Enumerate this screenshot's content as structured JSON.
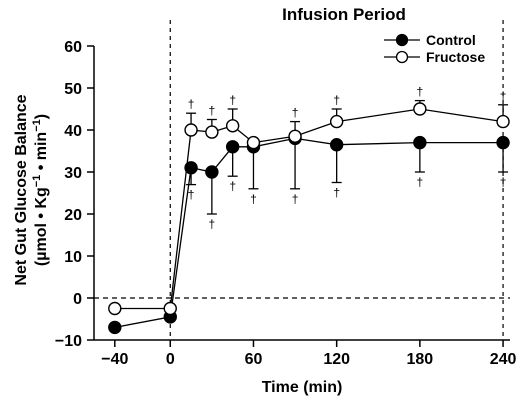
{
  "chart_data": {
    "type": "line",
    "title": "Infusion Period",
    "xlabel": "Time (min)",
    "ylabel_line1": "Net Gut Glucose Balance",
    "ylabel_line2_prefix": "(µmol • Kg",
    "ylabel_line2_sup1": "−1",
    "ylabel_line2_mid": " • min",
    "ylabel_line2_sup2": "−1",
    "ylabel_line2_suffix": ")",
    "xlim": [
      -55,
      245
    ],
    "ylim": [
      -10,
      60
    ],
    "x_ticks": [
      -40,
      0,
      60,
      120,
      180,
      240
    ],
    "x_tick_labels": [
      "−40",
      "0",
      "60",
      "120",
      "180",
      "240"
    ],
    "y_ticks": [
      -10,
      0,
      10,
      20,
      30,
      40,
      50,
      60
    ],
    "y_tick_labels": [
      "−10",
      "0",
      "10",
      "20",
      "30",
      "40",
      "50",
      "60"
    ],
    "zero_line": 0,
    "infusion_start": 0,
    "infusion_end": 240,
    "legend_position": "top-right",
    "significance_mark": "†",
    "series": [
      {
        "name": "Control",
        "marker": "filled-circle",
        "points": [
          {
            "x": -40,
            "y": -7,
            "err": 0,
            "dir": "down",
            "sig": false
          },
          {
            "x": 0,
            "y": -4.5,
            "err": 0,
            "dir": "down",
            "sig": false
          },
          {
            "x": 15,
            "y": 31,
            "err": 4,
            "dir": "down",
            "sig": true
          },
          {
            "x": 30,
            "y": 30,
            "err": 10,
            "dir": "down",
            "sig": true
          },
          {
            "x": 45,
            "y": 36,
            "err": 7,
            "dir": "down",
            "sig": true
          },
          {
            "x": 60,
            "y": 36,
            "err": 10,
            "dir": "down",
            "sig": true
          },
          {
            "x": 90,
            "y": 38,
            "err": 12,
            "dir": "down",
            "sig": true
          },
          {
            "x": 120,
            "y": 36.5,
            "err": 9,
            "dir": "down",
            "sig": true
          },
          {
            "x": 180,
            "y": 37,
            "err": 7,
            "dir": "down",
            "sig": true
          },
          {
            "x": 240,
            "y": 37,
            "err": 7,
            "dir": "down",
            "sig": true
          }
        ]
      },
      {
        "name": "Fructose",
        "marker": "open-circle",
        "points": [
          {
            "x": -40,
            "y": -2.5,
            "err": 0,
            "dir": "up",
            "sig": false
          },
          {
            "x": 0,
            "y": -2.5,
            "err": 0,
            "dir": "up",
            "sig": false
          },
          {
            "x": 15,
            "y": 40,
            "err": 4,
            "dir": "up",
            "sig": true
          },
          {
            "x": 30,
            "y": 39.5,
            "err": 3,
            "dir": "up",
            "sig": true
          },
          {
            "x": 45,
            "y": 41,
            "err": 4,
            "dir": "up",
            "sig": true
          },
          {
            "x": 60,
            "y": 37,
            "err": 0,
            "dir": "up",
            "sig": false
          },
          {
            "x": 90,
            "y": 38.5,
            "err": 3.5,
            "dir": "up",
            "sig": true
          },
          {
            "x": 120,
            "y": 42,
            "err": 3,
            "dir": "up",
            "sig": true
          },
          {
            "x": 180,
            "y": 45,
            "err": 2,
            "dir": "up",
            "sig": true
          },
          {
            "x": 240,
            "y": 42,
            "err": 4,
            "dir": "up",
            "sig": true
          }
        ]
      }
    ]
  }
}
